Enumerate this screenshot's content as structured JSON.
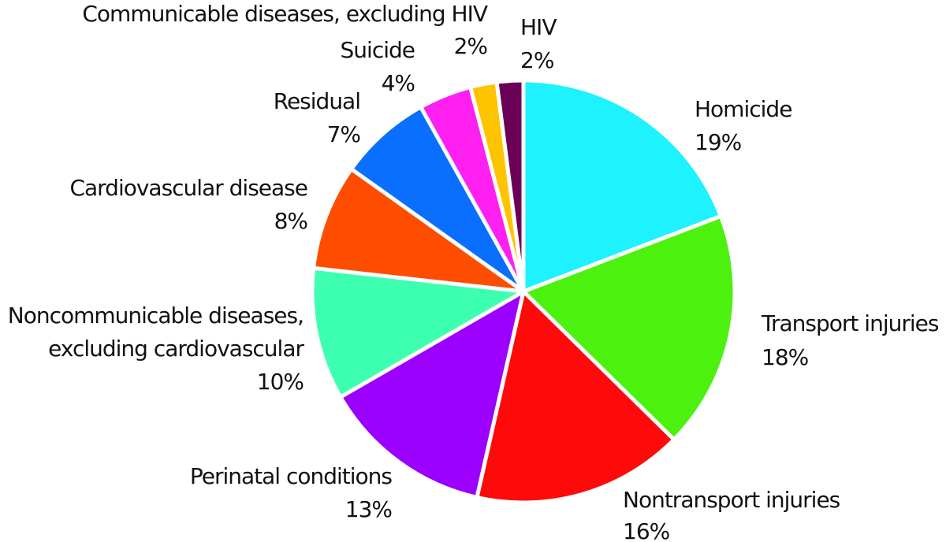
{
  "chart_data": {
    "type": "pie",
    "slices": [
      {
        "label": "Homicide",
        "pct_label": "19%",
        "value": 19,
        "color": "#1ef2ff"
      },
      {
        "label": "Transport injuries",
        "pct_label": "18%",
        "value": 18,
        "color": "#4cf20e"
      },
      {
        "label": "Nontransport injuries",
        "pct_label": "16%",
        "value": 16,
        "color": "#ff0a0a"
      },
      {
        "label": "Perinatal conditions",
        "pct_label": "13%",
        "value": 13,
        "color": "#9b00ff"
      },
      {
        "label_lines": [
          "Noncommunicable diseases,",
          "excluding cardiovascular"
        ],
        "pct_label": "10%",
        "value": 10,
        "color": "#3dffb0"
      },
      {
        "label": "Cardiovascular disease",
        "pct_label": "8%",
        "value": 8,
        "color": "#ff4d00"
      },
      {
        "label": "Residual",
        "pct_label": "7%",
        "value": 7,
        "color": "#0a6eff"
      },
      {
        "label": "Suicide",
        "pct_label": "4%",
        "value": 4,
        "color": "#ff1ff0"
      },
      {
        "label": "Communicable diseases, excluding HIV",
        "pct_label": "2%",
        "value": 2,
        "color": "#ffc400"
      },
      {
        "label": "HIV",
        "pct_label": "2%",
        "value": 2,
        "color": "#6b0057"
      }
    ]
  }
}
